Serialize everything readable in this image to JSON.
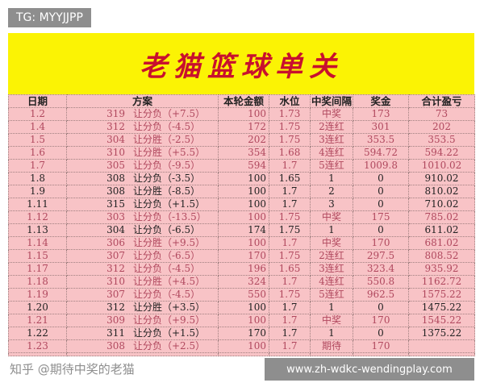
{
  "tag": "TG: MYYJJPP",
  "title": "老猫篮球单关",
  "headers": [
    "日期",
    "方案",
    "本轮金额",
    "水位",
    "中奖间隔",
    "奖金",
    "合计盈亏"
  ],
  "rows": [
    {
      "date": "1.2",
      "code": "319",
      "bet": "让分负（+7.5）",
      "amount": "100",
      "odds": "1.73",
      "interval": "中奖",
      "prize": "173",
      "total": "73",
      "win": true
    },
    {
      "date": "1.4",
      "code": "312",
      "bet": "让分负（-4.5）",
      "amount": "172",
      "odds": "1.75",
      "interval": "2连红",
      "prize": "301",
      "total": "202",
      "win": true
    },
    {
      "date": "1.5",
      "code": "304",
      "bet": "让分胜（-2.5）",
      "amount": "202",
      "odds": "1.75",
      "interval": "3连红",
      "prize": "353.5",
      "total": "353.5",
      "win": true
    },
    {
      "date": "1.6",
      "code": "310",
      "bet": "让分胜（+5.5）",
      "amount": "354",
      "odds": "1.68",
      "interval": "4连红",
      "prize": "594.72",
      "total": "594.22",
      "win": true
    },
    {
      "date": "1.7",
      "code": "305",
      "bet": "让分负（-9.5）",
      "amount": "594",
      "odds": "1.7",
      "interval": "5连红",
      "prize": "1009.8",
      "total": "1010.02",
      "win": true
    },
    {
      "date": "1.8",
      "code": "308",
      "bet": "让分负（-3.5）",
      "amount": "100",
      "odds": "1.65",
      "interval": "1",
      "prize": "0",
      "total": "910.02",
      "win": false
    },
    {
      "date": "1.9",
      "code": "308",
      "bet": "让分胜（-8.5）",
      "amount": "100",
      "odds": "1.7",
      "interval": "2",
      "prize": "0",
      "total": "810.02",
      "win": false
    },
    {
      "date": "1.11",
      "code": "315",
      "bet": "让分负（+1.5）",
      "amount": "100",
      "odds": "1.7",
      "interval": "3",
      "prize": "0",
      "total": "710.02",
      "win": false
    },
    {
      "date": "1.12",
      "code": "303",
      "bet": "让分负（-13.5）",
      "amount": "100",
      "odds": "1.75",
      "interval": "中奖",
      "prize": "175",
      "total": "785.02",
      "win": true
    },
    {
      "date": "1.13",
      "code": "304",
      "bet": "让分负（-6.5）",
      "amount": "174",
      "odds": "1.75",
      "interval": "1",
      "prize": "0",
      "total": "611.02",
      "win": false
    },
    {
      "date": "1.14",
      "code": "306",
      "bet": "让分胜（+9.5）",
      "amount": "100",
      "odds": "1.7",
      "interval": "中奖",
      "prize": "170",
      "total": "681.02",
      "win": true
    },
    {
      "date": "1.15",
      "code": "307",
      "bet": "让分负（-6.5）",
      "amount": "170",
      "odds": "1.75",
      "interval": "2连红",
      "prize": "297.5",
      "total": "808.52",
      "win": true
    },
    {
      "date": "1.17",
      "code": "312",
      "bet": "让分负（-4.5）",
      "amount": "196",
      "odds": "1.65",
      "interval": "3连红",
      "prize": "323.4",
      "total": "935.92",
      "win": true
    },
    {
      "date": "1.18",
      "code": "310",
      "bet": "让分胜（+4.5）",
      "amount": "324",
      "odds": "1.7",
      "interval": "4连红",
      "prize": "550.8",
      "total": "1162.72",
      "win": true
    },
    {
      "date": "1.19",
      "code": "307",
      "bet": "让分负（-4.5）",
      "amount": "550",
      "odds": "1.75",
      "interval": "5连红",
      "prize": "962.5",
      "total": "1575.22",
      "win": true
    },
    {
      "date": "1.20",
      "code": "312",
      "bet": "让分胜（+3.5）",
      "amount": "100",
      "odds": "1.7",
      "interval": "1",
      "prize": "0",
      "total": "1475.22",
      "win": false
    },
    {
      "date": "1.21",
      "code": "309",
      "bet": "让分负（+9.5）",
      "amount": "100",
      "odds": "1.7",
      "interval": "中奖",
      "prize": "170",
      "total": "1545.22",
      "win": true
    },
    {
      "date": "1.22",
      "code": "311",
      "bet": "让分负（+1.5）",
      "amount": "170",
      "odds": "1.7",
      "interval": "1",
      "prize": "0",
      "total": "1375.22",
      "win": false
    },
    {
      "date": "1.23",
      "code": "308",
      "bet": "让分负（+2.5）",
      "amount": "100",
      "odds": "1.7",
      "interval": "期待",
      "prize": "170",
      "total": "",
      "win": true
    }
  ],
  "watermark": "知乎 @期待中奖的老猫",
  "url": "www.zh-wdkc-wendingplay.com"
}
